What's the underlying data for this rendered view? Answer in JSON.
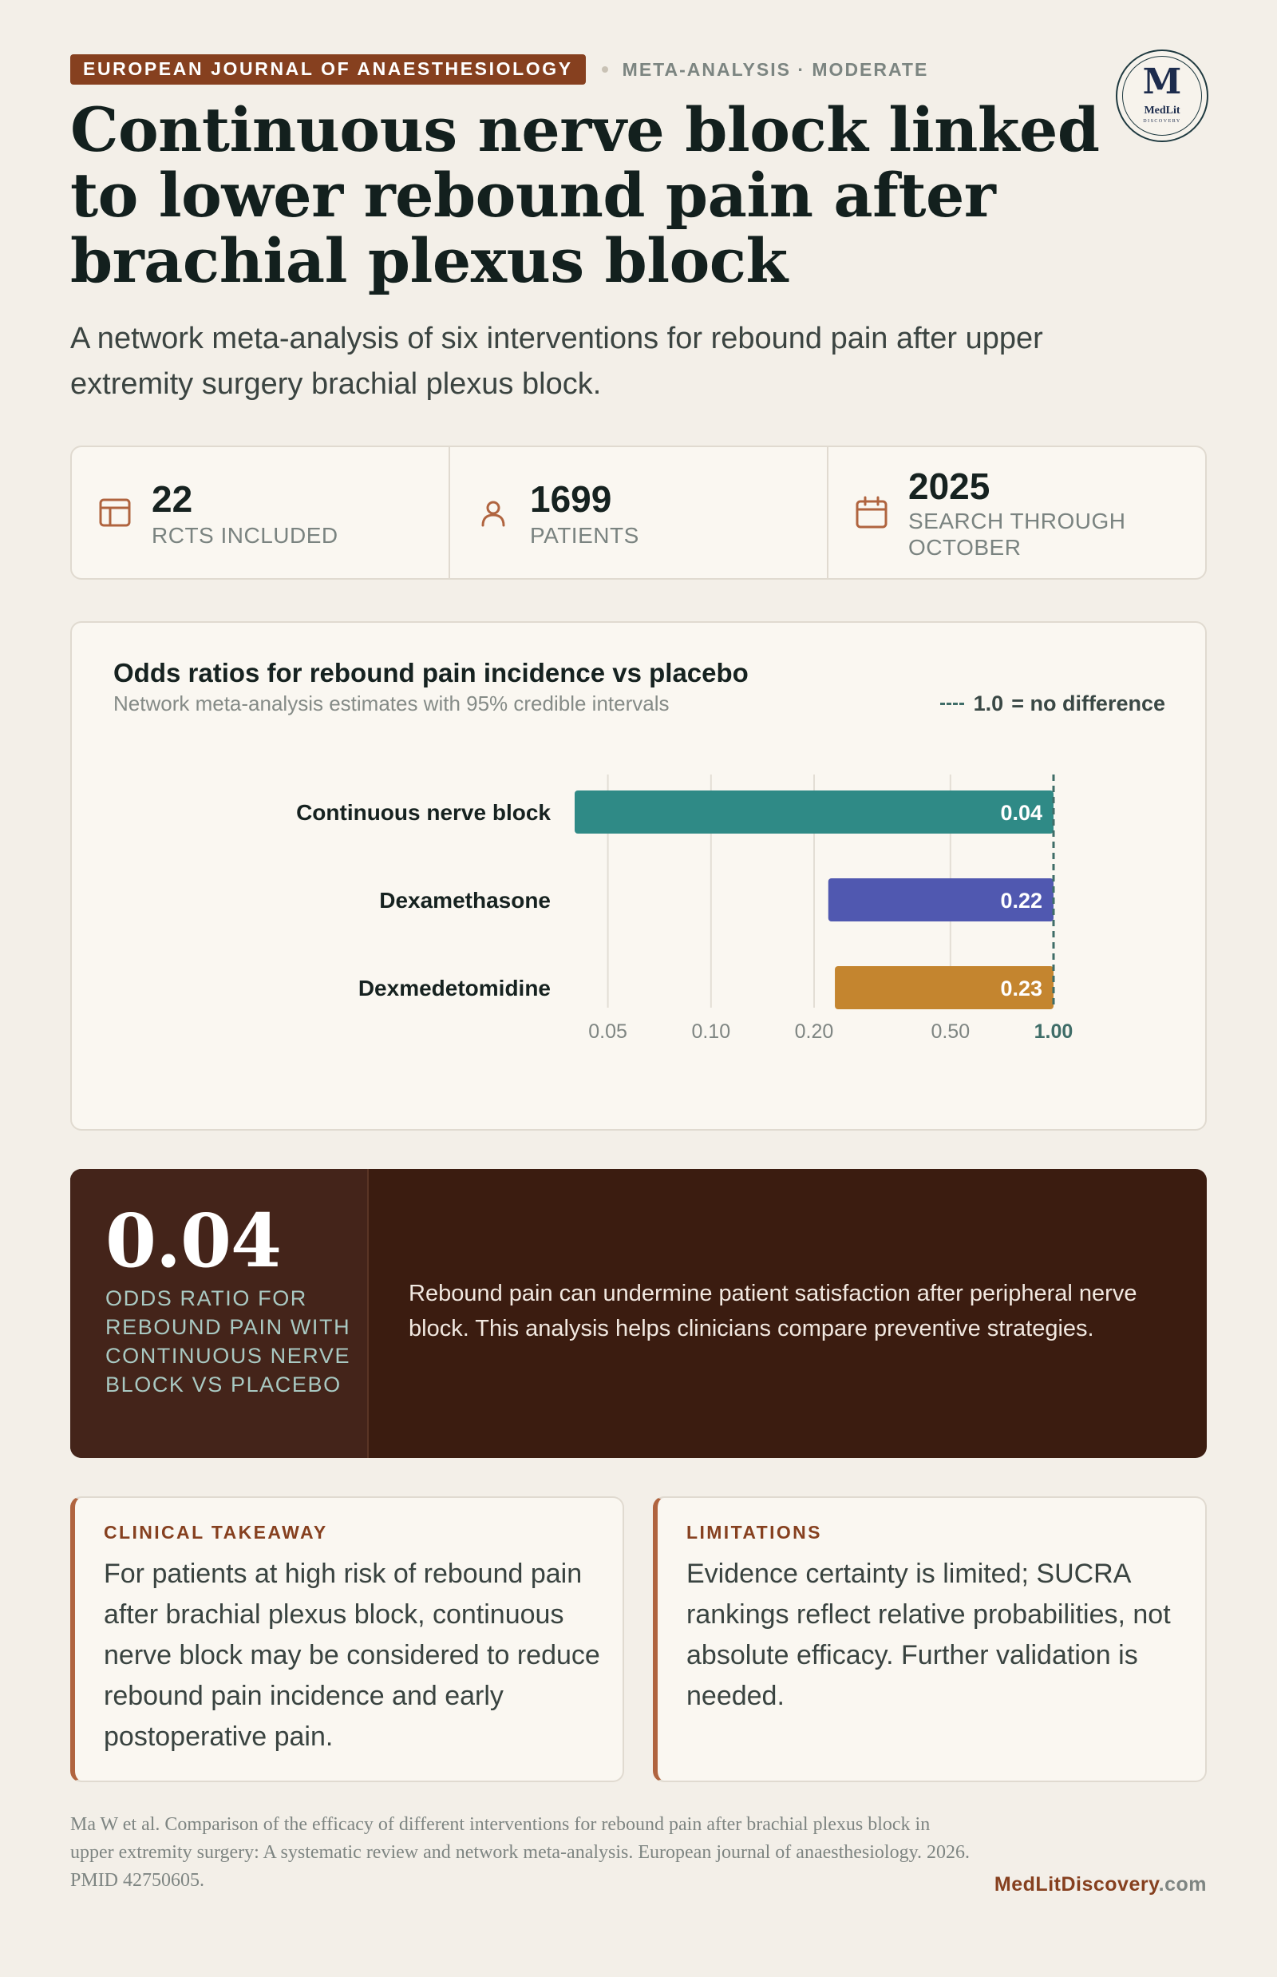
{
  "header": {
    "journal": "EUROPEAN JOURNAL OF ANAESTHESIOLOGY",
    "study_type": "META-ANALYSIS · MODERATE",
    "logo": {
      "letter": "M",
      "name": "MedLit",
      "tagline": "DISCOVERY"
    }
  },
  "headline": "Continuous nerve block linked to lower rebound pain after brachial plexus block",
  "subtitle": "A network meta-analysis of six interventions for rebound pain after upper extremity surgery brachial plexus block.",
  "stats": [
    {
      "icon": "table-icon",
      "value": "22",
      "label": "RCTS INCLUDED"
    },
    {
      "icon": "person-icon",
      "value": "1699",
      "label": "PATIENTS"
    },
    {
      "icon": "calendar-icon",
      "value": "2025",
      "label": "SEARCH THROUGH OCTOBER"
    }
  ],
  "chart": {
    "legend_value": "1.0",
    "legend_text": "= no difference"
  },
  "chart_data": {
    "type": "bar",
    "title": "Odds ratios for rebound pain incidence vs placebo",
    "subtitle": "Network meta-analysis estimates with 95% credible intervals",
    "orientation": "horizontal",
    "x_scale": "log",
    "xlim": [
      0.04,
      1.0
    ],
    "reference_line": 1.0,
    "categories": [
      "Continuous nerve block",
      "Dexamethasone",
      "Dexmedetomidine"
    ],
    "values": [
      0.04,
      0.22,
      0.23
    ],
    "value_labels": [
      "0.04",
      "0.22",
      "0.23"
    ],
    "colors": [
      "#2f8a86",
      "#5058b0",
      "#c4852f"
    ],
    "x_ticks": [
      {
        "value": 0.05,
        "label": "0.05"
      },
      {
        "value": 0.1,
        "label": "0.10"
      },
      {
        "value": 0.2,
        "label": "0.20"
      },
      {
        "value": 0.5,
        "label": "0.50"
      },
      {
        "value": 1.0,
        "label": "1.00"
      }
    ],
    "grid": true
  },
  "highlight": {
    "number": "0.04",
    "label": "ODDS RATIO FOR REBOUND PAIN WITH CONTINUOUS NERVE BLOCK VS PLACEBO",
    "text": "Rebound pain can undermine patient satisfaction after peripheral nerve block. This analysis helps clinicians compare preventive strategies."
  },
  "takeaway": {
    "heading": "CLINICAL TAKEAWAY",
    "body": "For patients at high risk of rebound pain after brachial plexus block, continuous nerve block may be considered to reduce rebound pain incidence and early postoperative pain."
  },
  "limitations": {
    "heading": "LIMITATIONS",
    "body": "Evidence certainty is limited; SUCRA rankings reflect relative probabilities, not absolute efficacy. Further validation is needed."
  },
  "footer": {
    "citation": "Ma W et al. Comparison of the efficacy of different interventions for rebound pain after brachial plexus block in upper extremity surgery: A systematic review and network meta-analysis. European journal of anaesthesiology. 2026. PMID 42750605.",
    "site_brand": "MedLitDiscovery",
    "site_tld": ".com"
  },
  "colors": {
    "accent": "#86401f",
    "dark_panel": "#3b1c10",
    "reference_line": "#3f6d68"
  }
}
